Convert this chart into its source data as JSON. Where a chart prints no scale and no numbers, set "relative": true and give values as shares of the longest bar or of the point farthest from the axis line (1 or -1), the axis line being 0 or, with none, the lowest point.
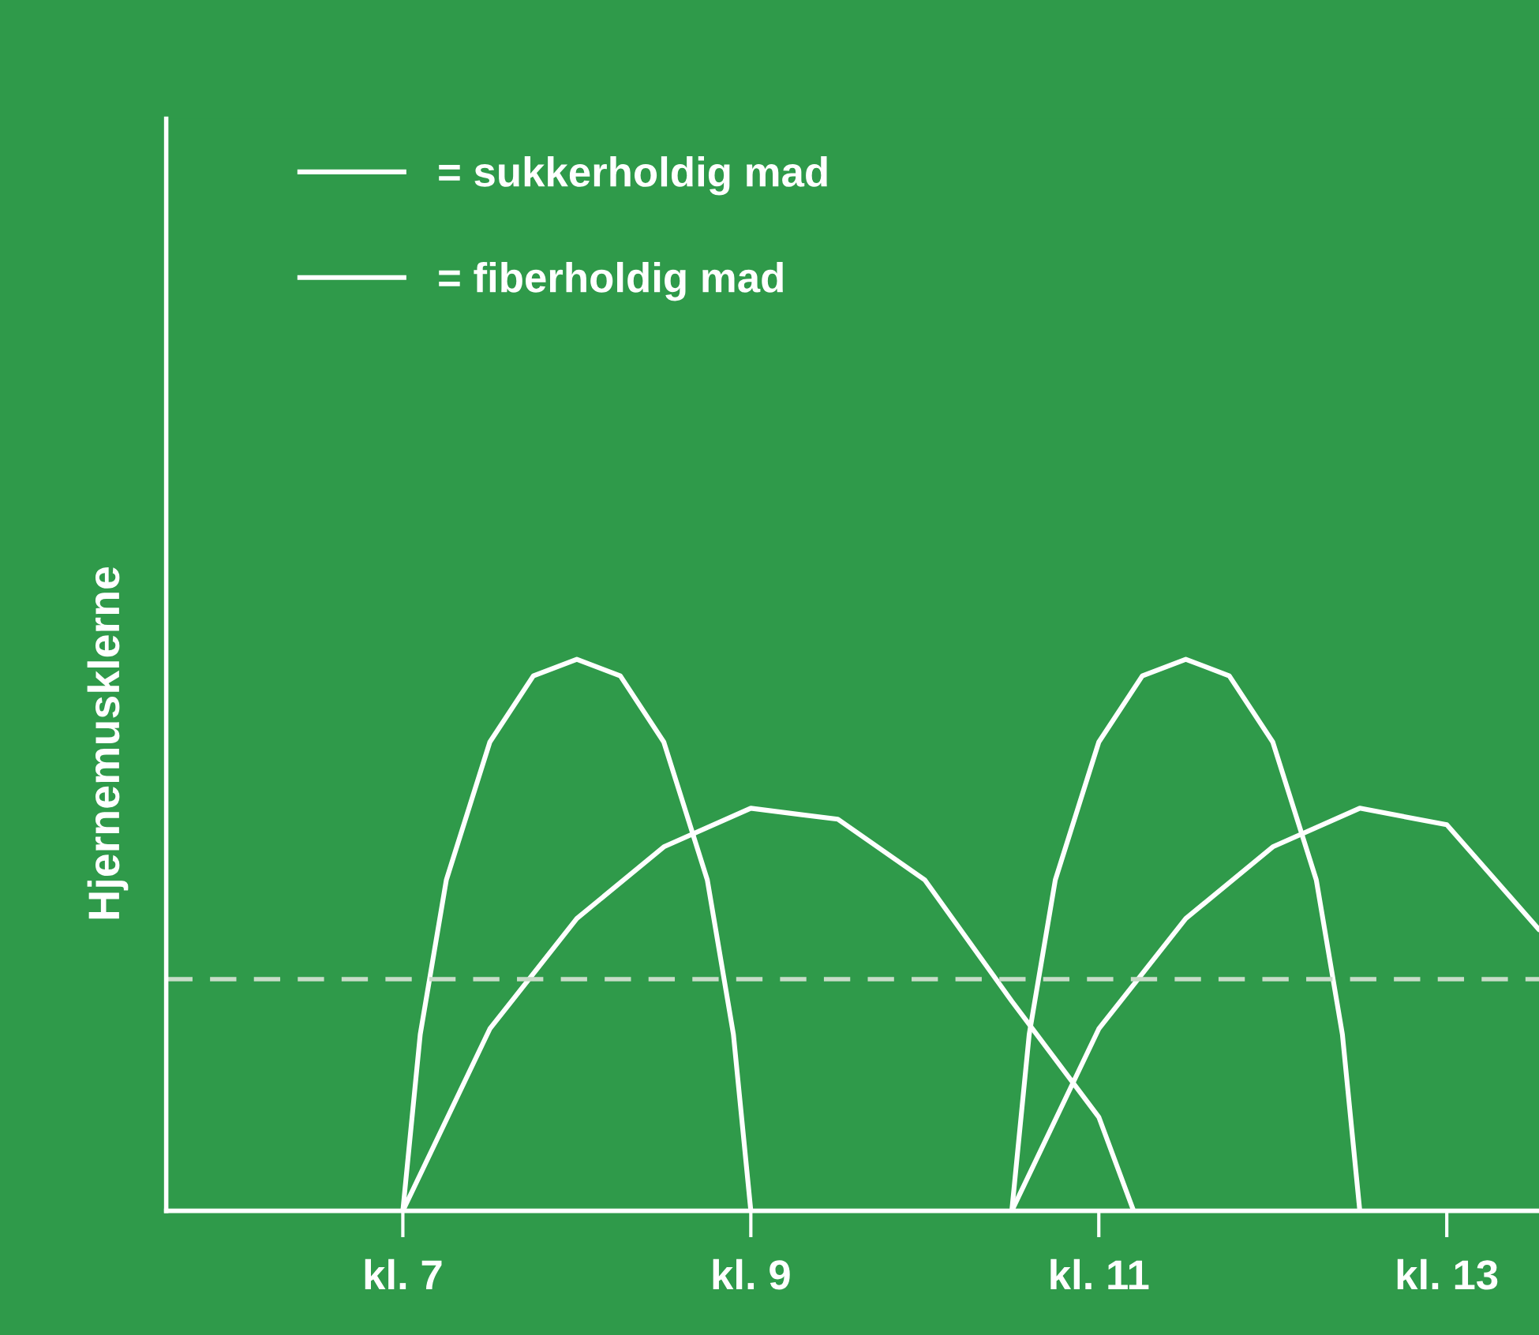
{
  "chart_data": {
    "type": "line",
    "relative": true,
    "ylabel": "Hjernemusklerne",
    "xlim": [
      5.64,
      13.53
    ],
    "xticks": [
      {
        "value": 7,
        "label": "kl. 7"
      },
      {
        "value": 9,
        "label": "kl. 9"
      },
      {
        "value": 11,
        "label": "kl. 11"
      },
      {
        "value": 13,
        "label": "kl. 13"
      }
    ],
    "legend": "top left",
    "marker": "none",
    "line_style": "solid",
    "grid": false,
    "ref_lines": [
      {
        "axis": "y",
        "value": 0.42,
        "color": "#c8dcc8",
        "line_style": "dashed"
      }
    ],
    "series": [
      {
        "name": "= sukkerholdig mad",
        "color": "#ffffff",
        "x": [
          7,
          7.1,
          7.25,
          7.5,
          7.75,
          8,
          8.25,
          8.5,
          8.75,
          8.9,
          9,
          null,
          10.5,
          10.6,
          10.75,
          11,
          11.25,
          11.5,
          11.75,
          12,
          12.25,
          12.4,
          12.5
        ],
        "values": [
          0,
          0.32,
          0.6,
          0.85,
          0.97,
          1,
          0.97,
          0.85,
          0.6,
          0.32,
          0,
          null,
          0,
          0.32,
          0.6,
          0.85,
          0.97,
          1,
          0.97,
          0.85,
          0.6,
          0.32,
          0
        ]
      },
      {
        "name": "= fiberholdig mad",
        "color": "#ffffff",
        "x": [
          7,
          7.5,
          8,
          8.5,
          9,
          9.5,
          10,
          10.5,
          11,
          11.2,
          null,
          10.5,
          11,
          11.5,
          12,
          12.5,
          13,
          13.53
        ],
        "values": [
          0,
          0.33,
          0.53,
          0.66,
          0.73,
          0.71,
          0.6,
          0.38,
          0.17,
          0,
          null,
          0,
          0.33,
          0.53,
          0.66,
          0.73,
          0.7,
          0.51
        ]
      }
    ]
  }
}
